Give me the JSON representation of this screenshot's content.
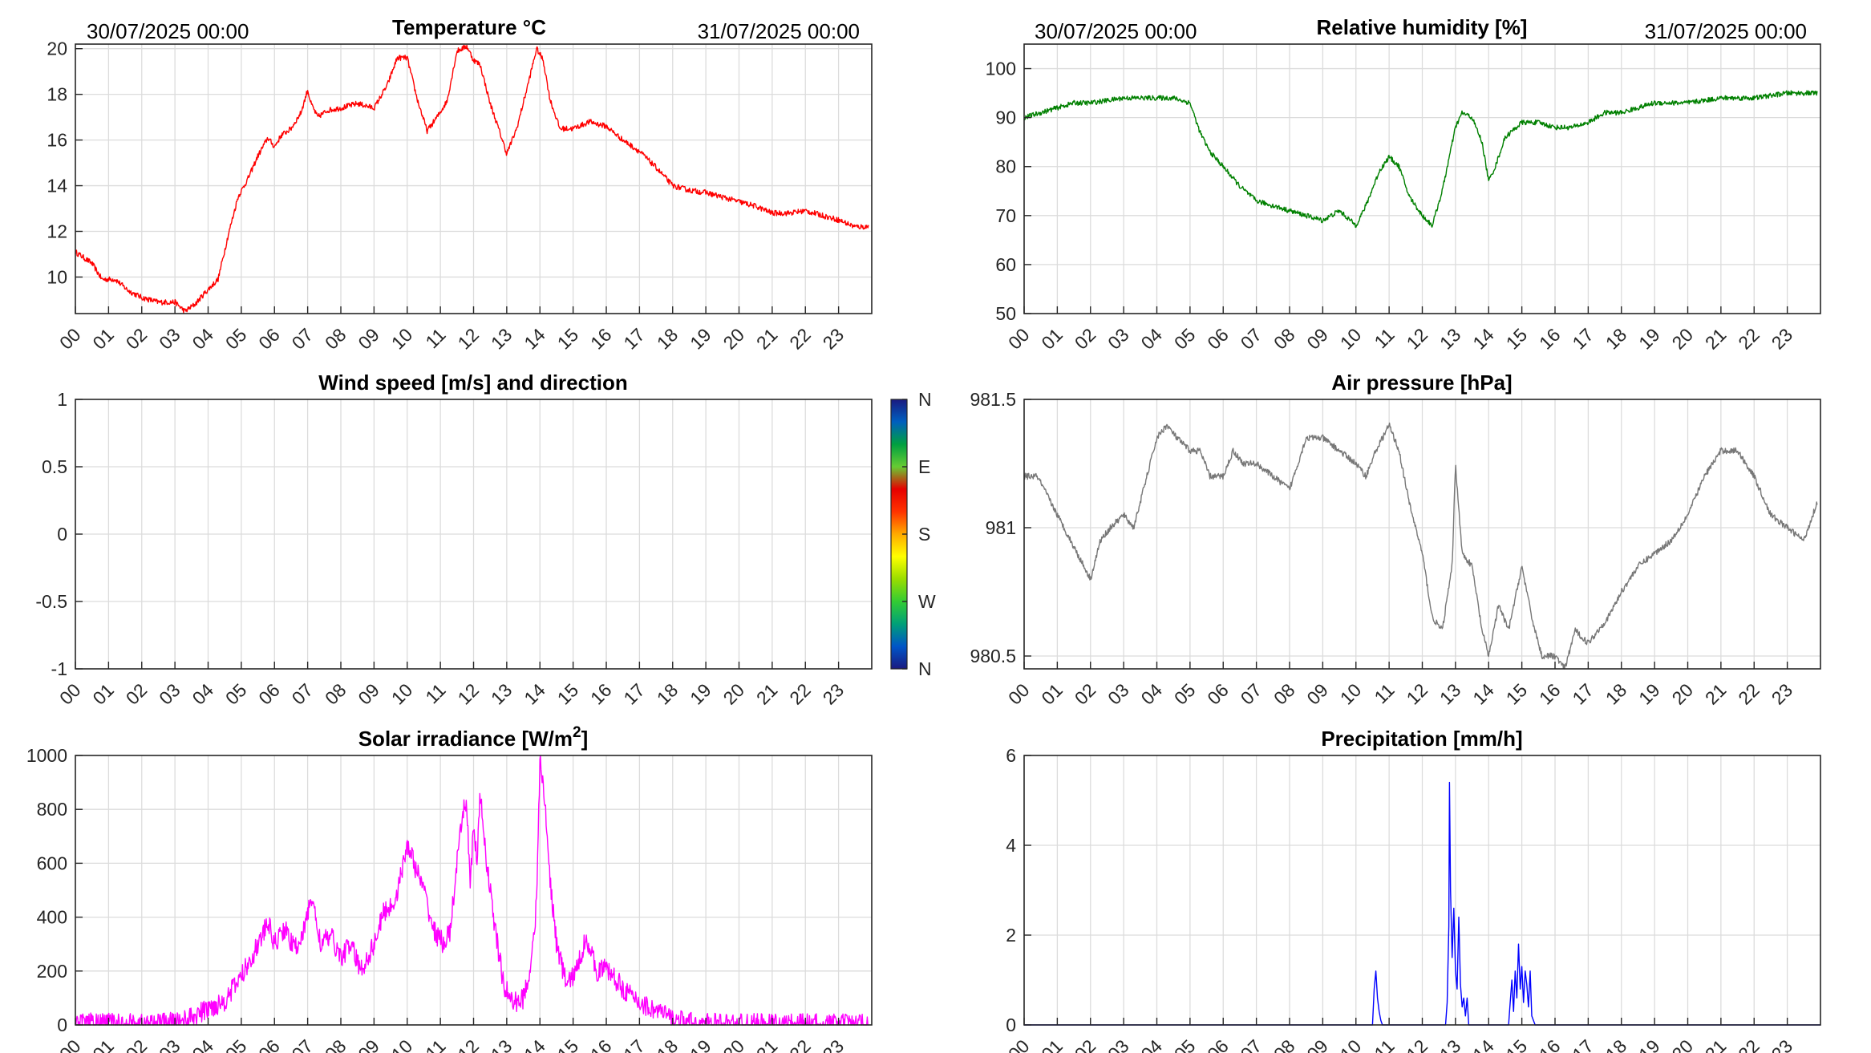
{
  "time_axis": {
    "hour_labels": [
      "00",
      "01",
      "02",
      "03",
      "04",
      "05",
      "06",
      "07",
      "08",
      "09",
      "10",
      "11",
      "12",
      "13",
      "14",
      "15",
      "16",
      "17",
      "18",
      "19",
      "20",
      "21",
      "22",
      "23"
    ],
    "start_label": "30/07/2025 00:00",
    "end_label": "31/07/2025 00:00"
  },
  "chart_data": [
    {
      "id": "temperature",
      "type": "line",
      "title": "Temperature °C",
      "color": "#ff0000",
      "xlim": [
        0,
        24
      ],
      "ylim": [
        8.4,
        20.2
      ],
      "yticks": [
        10,
        12,
        14,
        16,
        18,
        20
      ],
      "ytick_labels": [
        "10",
        "12",
        "14",
        "16",
        "18",
        "20"
      ],
      "noise": 0.12,
      "x": [
        0,
        0.5,
        0.8,
        1.2,
        1.6,
        2.0,
        2.5,
        3.0,
        3.3,
        3.6,
        3.9,
        4.3,
        4.6,
        4.9,
        5.2,
        5.5,
        5.8,
        6.0,
        6.2,
        6.5,
        6.8,
        7.0,
        7.1,
        7.3,
        7.6,
        8.0,
        8.5,
        9.0,
        9.4,
        9.7,
        10.0,
        10.3,
        10.6,
        10.9,
        11.2,
        11.5,
        11.8,
        12.0,
        12.2,
        12.5,
        12.8,
        13.0,
        13.3,
        13.6,
        13.9,
        14.1,
        14.3,
        14.6,
        15.0,
        15.5,
        16.0,
        16.5,
        17.0,
        17.5,
        18.0,
        18.5,
        19.0,
        19.5,
        20.0,
        20.5,
        21.0,
        21.5,
        22.0,
        22.5,
        23.0,
        23.5,
        23.9
      ],
      "y": [
        11.1,
        10.6,
        9.9,
        9.9,
        9.4,
        9.1,
        8.9,
        8.9,
        8.5,
        8.8,
        9.3,
        9.9,
        11.8,
        13.5,
        14.3,
        15.3,
        16.1,
        15.7,
        16.2,
        16.5,
        17.2,
        18.2,
        17.6,
        17.0,
        17.3,
        17.4,
        17.6,
        17.4,
        18.4,
        19.6,
        19.6,
        17.8,
        16.4,
        17.0,
        17.7,
        19.9,
        20.1,
        19.5,
        19.3,
        17.6,
        16.3,
        15.4,
        16.5,
        18.2,
        20.0,
        19.5,
        17.8,
        16.5,
        16.5,
        16.8,
        16.6,
        16.0,
        15.5,
        14.8,
        14.0,
        13.8,
        13.7,
        13.5,
        13.3,
        13.1,
        12.8,
        12.8,
        12.9,
        12.7,
        12.5,
        12.2,
        12.2
      ]
    },
    {
      "id": "humidity",
      "type": "line",
      "title": "Relative humidity [%]",
      "color": "#008000",
      "xlim": [
        0,
        24
      ],
      "ylim": [
        50,
        105
      ],
      "yticks": [
        50,
        60,
        70,
        80,
        90,
        100
      ],
      "ytick_labels": [
        "50",
        "60",
        "70",
        "80",
        "90",
        "100"
      ],
      "noise": 0.5,
      "x": [
        0,
        0.5,
        1.0,
        1.5,
        2.0,
        2.5,
        3.0,
        3.5,
        4.0,
        4.5,
        5.0,
        5.3,
        5.6,
        6.0,
        6.5,
        7.0,
        7.5,
        8.0,
        8.5,
        9.0,
        9.5,
        10.0,
        10.3,
        10.7,
        11.0,
        11.3,
        11.6,
        12.0,
        12.3,
        12.6,
        13.0,
        13.2,
        13.5,
        13.8,
        14.0,
        14.2,
        14.5,
        15.0,
        15.5,
        16.0,
        16.5,
        17.0,
        17.5,
        18.0,
        18.5,
        19.0,
        20.0,
        21.0,
        22.0,
        23.0,
        23.9
      ],
      "y": [
        90,
        91,
        92,
        93,
        93,
        93.5,
        94,
        94,
        94,
        94,
        93,
        87,
        83,
        80,
        76,
        73,
        72,
        71,
        70,
        69,
        71,
        68,
        72,
        79,
        82,
        80,
        74,
        70,
        68,
        75,
        88,
        91,
        90,
        85,
        77,
        80,
        86,
        89,
        89,
        88,
        88,
        89,
        91,
        91,
        92,
        93,
        93,
        94,
        94,
        95,
        95
      ]
    },
    {
      "id": "wind",
      "type": "scatter",
      "title": "Wind speed [m/s] and direction",
      "xlim": [
        0,
        24
      ],
      "ylim": [
        -1,
        1
      ],
      "yticks": [
        -1,
        -0.5,
        0,
        0.5,
        1
      ],
      "ytick_labels": [
        "-1",
        "-0.5",
        "0",
        "0.5",
        "1"
      ],
      "x": [],
      "y": [],
      "colorbar": {
        "labels": [
          "N",
          "W",
          "S",
          "E",
          "N"
        ],
        "colors": [
          "#1a1a80",
          "#0055c8",
          "#00a078",
          "#33cc33",
          "#99dd00",
          "#ffff00",
          "#ffaa00",
          "#ff3300",
          "#e60000",
          "#66cc33",
          "#00a040",
          "#005fbf",
          "#1a1a80"
        ]
      }
    },
    {
      "id": "pressure",
      "type": "line",
      "title": "Air pressure [hPa]",
      "color": "#777777",
      "xlim": [
        0,
        24
      ],
      "ylim": [
        980.45,
        981.5
      ],
      "yticks": [
        980.5,
        981,
        981.5
      ],
      "ytick_labels": [
        "980.5",
        "981",
        "981.5"
      ],
      "noise": 0.012,
      "x": [
        0,
        0.4,
        0.8,
        1.2,
        1.6,
        2.0,
        2.3,
        2.6,
        3.0,
        3.3,
        3.6,
        4.0,
        4.3,
        4.6,
        5.0,
        5.3,
        5.6,
        6.0,
        6.3,
        6.6,
        7.0,
        7.5,
        8.0,
        8.5,
        9.0,
        9.5,
        10.0,
        10.3,
        10.6,
        11.0,
        11.3,
        11.6,
        12.0,
        12.3,
        12.6,
        12.9,
        13.0,
        13.2,
        13.5,
        13.8,
        14.0,
        14.3,
        14.6,
        15.0,
        15.3,
        15.6,
        16.0,
        16.3,
        16.6,
        17.0,
        17.3,
        17.6,
        18.0,
        18.5,
        19.0,
        19.5,
        20.0,
        20.5,
        21.0,
        21.5,
        22.0,
        22.5,
        23.0,
        23.5,
        23.9
      ],
      "y": [
        981.2,
        981.2,
        981.1,
        981.0,
        980.9,
        980.8,
        980.95,
        981.0,
        981.05,
        981.0,
        981.15,
        981.35,
        981.4,
        981.35,
        981.3,
        981.3,
        981.2,
        981.2,
        981.3,
        981.25,
        981.25,
        981.2,
        981.15,
        981.35,
        981.35,
        981.3,
        981.25,
        981.2,
        981.3,
        981.4,
        981.3,
        981.1,
        980.9,
        980.65,
        980.6,
        980.85,
        981.25,
        980.9,
        980.85,
        980.6,
        980.5,
        980.7,
        980.6,
        980.85,
        980.65,
        980.5,
        980.5,
        980.45,
        980.6,
        980.55,
        980.6,
        980.65,
        980.75,
        980.85,
        980.9,
        980.95,
        981.05,
        981.2,
        981.3,
        981.3,
        981.2,
        981.05,
        981.0,
        980.95,
        981.1
      ]
    },
    {
      "id": "solar",
      "type": "line",
      "title": "Solar irradiance [W/m2]",
      "color": "#ff00ff",
      "xlim": [
        0,
        24
      ],
      "ylim": [
        0,
        1000
      ],
      "yticks": [
        0,
        200,
        400,
        600,
        800,
        1000
      ],
      "ytick_labels": [
        "0",
        "200",
        "400",
        "600",
        "800",
        "1000"
      ],
      "noise": 40,
      "x": [
        0,
        2.5,
        3.0,
        3.5,
        4.0,
        4.5,
        5.0,
        5.3,
        5.6,
        5.8,
        6.0,
        6.3,
        6.6,
        6.9,
        7.1,
        7.4,
        7.7,
        8.0,
        8.3,
        8.6,
        9.0,
        9.3,
        9.6,
        9.9,
        10.0,
        10.2,
        10.5,
        10.8,
        11.1,
        11.3,
        11.5,
        11.7,
        11.8,
        11.9,
        12.0,
        12.1,
        12.2,
        12.4,
        12.6,
        12.9,
        13.2,
        13.5,
        13.7,
        13.9,
        14.0,
        14.1,
        14.3,
        14.5,
        14.8,
        15.1,
        15.4,
        15.7,
        16.0,
        16.4,
        16.8,
        17.2,
        17.6,
        18.0,
        18.5,
        19.0,
        20.0,
        21.0,
        22.0,
        23.0,
        23.9
      ],
      "y": [
        5,
        5,
        10,
        25,
        60,
        90,
        180,
        250,
        320,
        380,
        300,
        360,
        280,
        350,
        480,
        300,
        330,
        250,
        300,
        200,
        300,
        420,
        450,
        600,
        680,
        600,
        500,
        350,
        300,
        350,
        600,
        800,
        820,
        500,
        750,
        600,
        850,
        600,
        400,
        150,
        80,
        100,
        200,
        450,
        980,
        900,
        550,
        300,
        150,
        200,
        330,
        200,
        210,
        150,
        100,
        70,
        50,
        20,
        8,
        5,
        3,
        2,
        2,
        2,
        2
      ]
    },
    {
      "id": "precip",
      "type": "line",
      "title": "Precipitation [mm/h]",
      "color": "#0000ff",
      "xlim": [
        0,
        24
      ],
      "ylim": [
        0,
        6
      ],
      "yticks": [
        0,
        2,
        4,
        6
      ],
      "ytick_labels": [
        "0",
        "2",
        "4",
        "6"
      ],
      "noise": 0,
      "x": [
        0,
        10.5,
        10.55,
        10.6,
        10.65,
        10.7,
        10.75,
        10.8,
        12.7,
        12.75,
        12.8,
        12.82,
        12.85,
        12.9,
        12.95,
        13.0,
        13.05,
        13.1,
        13.15,
        13.2,
        13.25,
        13.3,
        13.35,
        13.4,
        13.5,
        14.6,
        14.65,
        14.7,
        14.75,
        14.8,
        14.85,
        14.9,
        14.95,
        15.0,
        15.05,
        15.1,
        15.15,
        15.2,
        15.25,
        15.3,
        15.4,
        24.0
      ],
      "y": [
        0,
        0,
        0.8,
        1.2,
        0.6,
        0.3,
        0.1,
        0,
        0,
        0.5,
        2.2,
        5.4,
        3.0,
        1.5,
        2.6,
        1.2,
        0.8,
        2.4,
        0.9,
        0.4,
        0.6,
        0.2,
        0.6,
        0,
        0,
        0,
        0.5,
        1.0,
        0.3,
        1.2,
        0.6,
        1.8,
        0.8,
        1.3,
        0.5,
        1.2,
        0.9,
        0.4,
        1.2,
        0.2,
        0,
        0
      ]
    }
  ]
}
